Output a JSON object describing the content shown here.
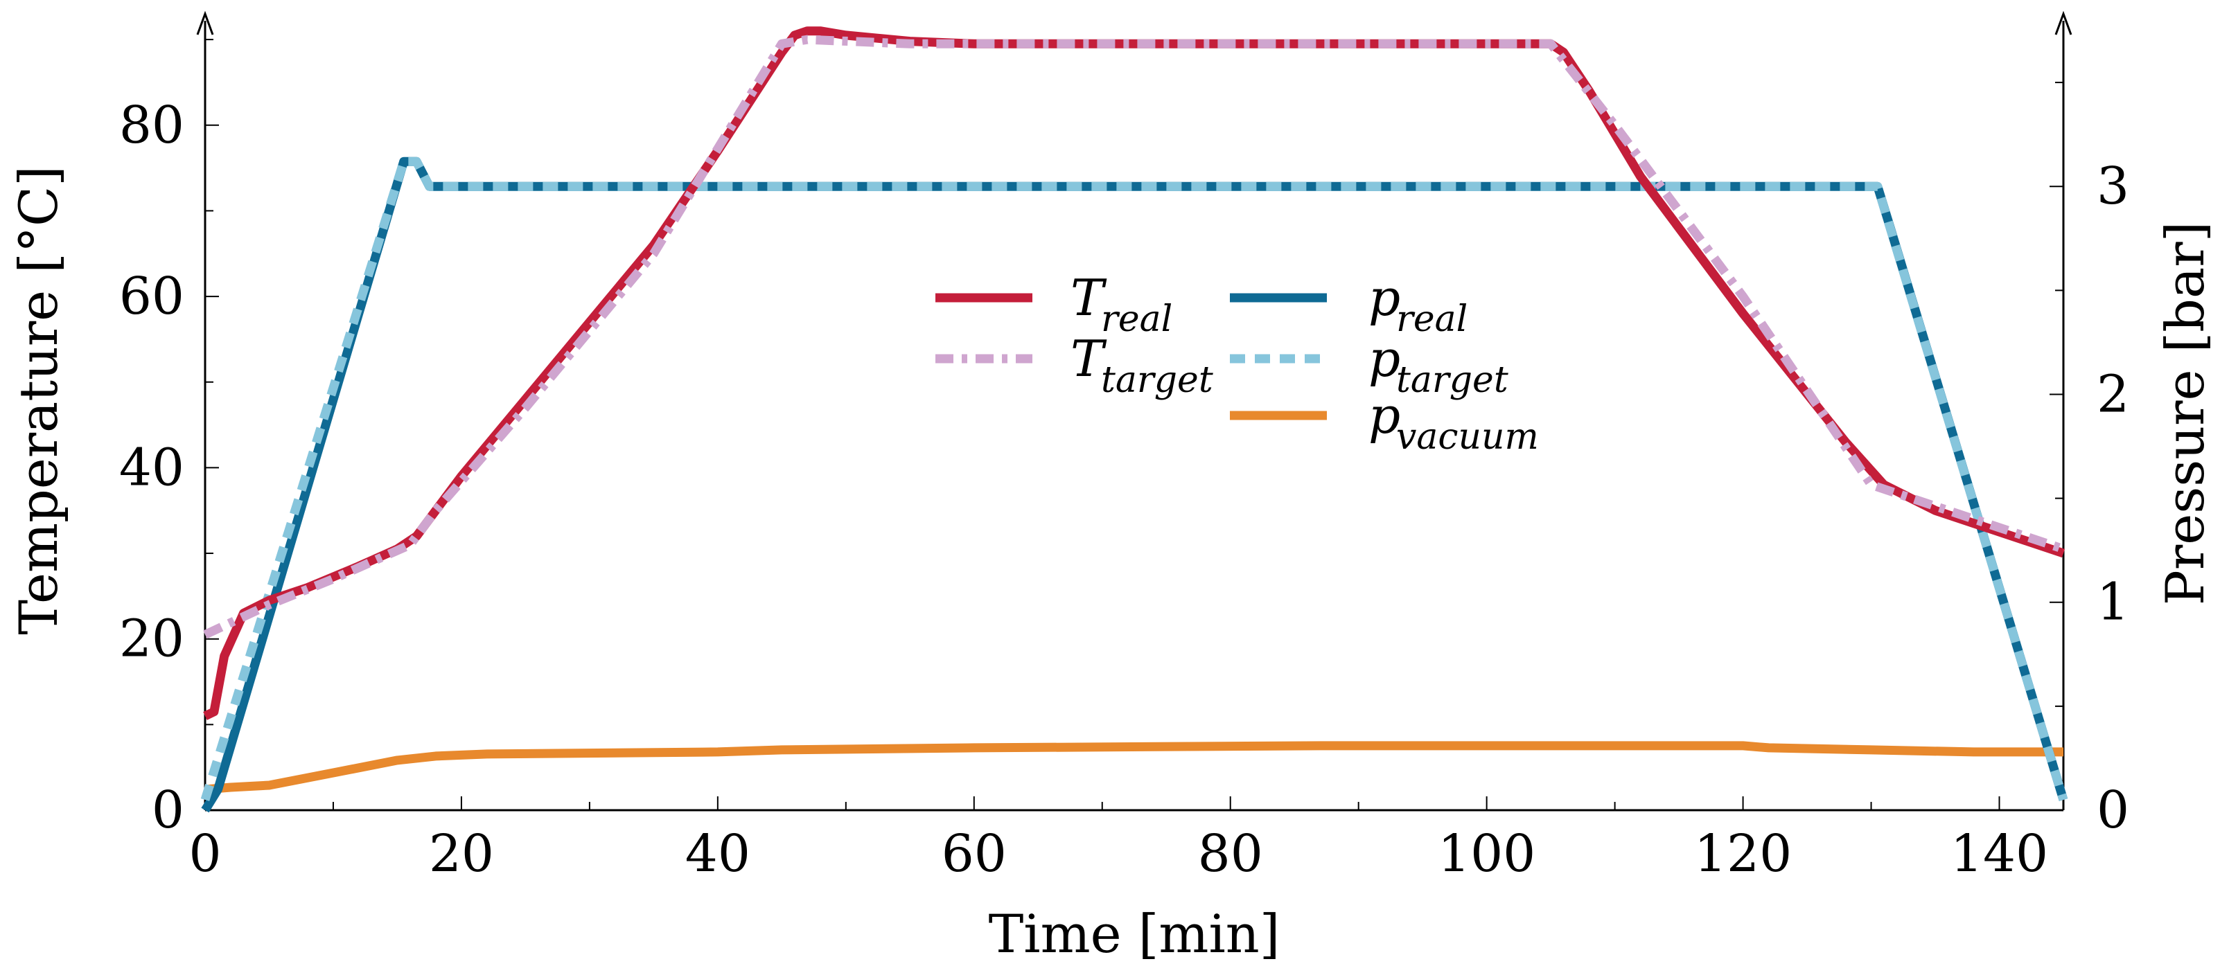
{
  "chart_data": {
    "type": "line",
    "xlabel": "Time [min]",
    "ylabel_left": "Temperature [°C]",
    "ylabel_right": "Pressure [bar]",
    "xlim": [
      0,
      145
    ],
    "ylim_left": [
      0,
      93
    ],
    "ylim_right": [
      0,
      3.83
    ],
    "x_ticks": [
      0,
      20,
      40,
      60,
      80,
      100,
      120,
      140
    ],
    "x_tick_labels": [
      "0",
      "20",
      "40",
      "60",
      "80",
      "100",
      "120",
      "140"
    ],
    "y_left_ticks": [
      0,
      20,
      40,
      60,
      80
    ],
    "y_left_tick_labels": [
      "0",
      "20",
      "40",
      "60",
      "80"
    ],
    "y_right_ticks": [
      0,
      1,
      2,
      3
    ],
    "y_right_tick_labels": [
      "0",
      "1",
      "2",
      "3"
    ],
    "series": [
      {
        "id": "t-target",
        "axis": "left",
        "name_main": "T",
        "name_sub": "target",
        "color": "#cfa5cf",
        "dash": "dashdot",
        "x": [
          0,
          5,
          10,
          16,
          18,
          25,
          35,
          45,
          47,
          55,
          105,
          110,
          120,
          130,
          140,
          145
        ],
        "y": [
          20.5,
          24,
          27,
          31,
          35,
          47,
          65,
          89.5,
          90,
          89.5,
          89.5,
          80,
          60,
          38,
          33,
          30.5
        ]
      },
      {
        "id": "t-real",
        "axis": "left",
        "name_main": "T",
        "name_sub": "real",
        "color": "#c41e3a",
        "dash": "solid",
        "x": [
          0,
          0.7,
          1.5,
          3,
          5,
          8,
          12,
          15,
          16.5,
          18,
          20,
          25,
          30,
          35,
          40,
          45,
          46,
          47,
          48,
          50,
          55,
          60,
          80,
          105,
          106,
          108,
          112,
          120,
          128,
          131,
          135,
          140,
          145
        ],
        "y": [
          11,
          11.5,
          18,
          23,
          24.5,
          26,
          28.5,
          30.5,
          32,
          35,
          39,
          48,
          57,
          66,
          77,
          88.5,
          90.5,
          91,
          91,
          90.5,
          89.8,
          89.5,
          89.5,
          89.5,
          88.5,
          84,
          74,
          58,
          43,
          38,
          35,
          32.5,
          30
        ]
      },
      {
        "id": "p-target",
        "axis": "right",
        "name_main": "p",
        "name_sub": "target",
        "color": "#86c5dc",
        "dash": "dash",
        "x": [
          0,
          15.5,
          16.5,
          17.5,
          130.5,
          145
        ],
        "y": [
          0.05,
          3.12,
          3.12,
          3.0,
          3.0,
          0.05
        ]
      },
      {
        "id": "p-real",
        "axis": "right",
        "name_main": "p",
        "name_sub": "real",
        "color": "#0f6a94",
        "dash": "solid",
        "x": [
          0,
          1,
          15.5,
          16.5,
          17.5,
          130.5,
          131.5,
          145
        ],
        "y": [
          0,
          0.1,
          3.12,
          3.12,
          3.0,
          3.0,
          2.8,
          0.05
        ]
      },
      {
        "id": "p-vacuum",
        "axis": "right",
        "name_main": "p",
        "name_sub": "vacuum",
        "color": "#e8892d",
        "dash": "solid",
        "x": [
          0,
          2,
          5,
          10,
          15,
          18,
          22,
          40,
          45,
          60,
          87,
          120,
          122,
          130,
          138,
          145
        ],
        "y": [
          0.1,
          0.11,
          0.12,
          0.18,
          0.24,
          0.26,
          0.27,
          0.28,
          0.29,
          0.3,
          0.31,
          0.31,
          0.3,
          0.29,
          0.28,
          0.28
        ]
      }
    ],
    "legend": {
      "placement": "center",
      "columns": [
        [
          "t-real",
          "t-target"
        ],
        [
          "p-real",
          "p-target",
          "p-vacuum"
        ]
      ]
    }
  }
}
